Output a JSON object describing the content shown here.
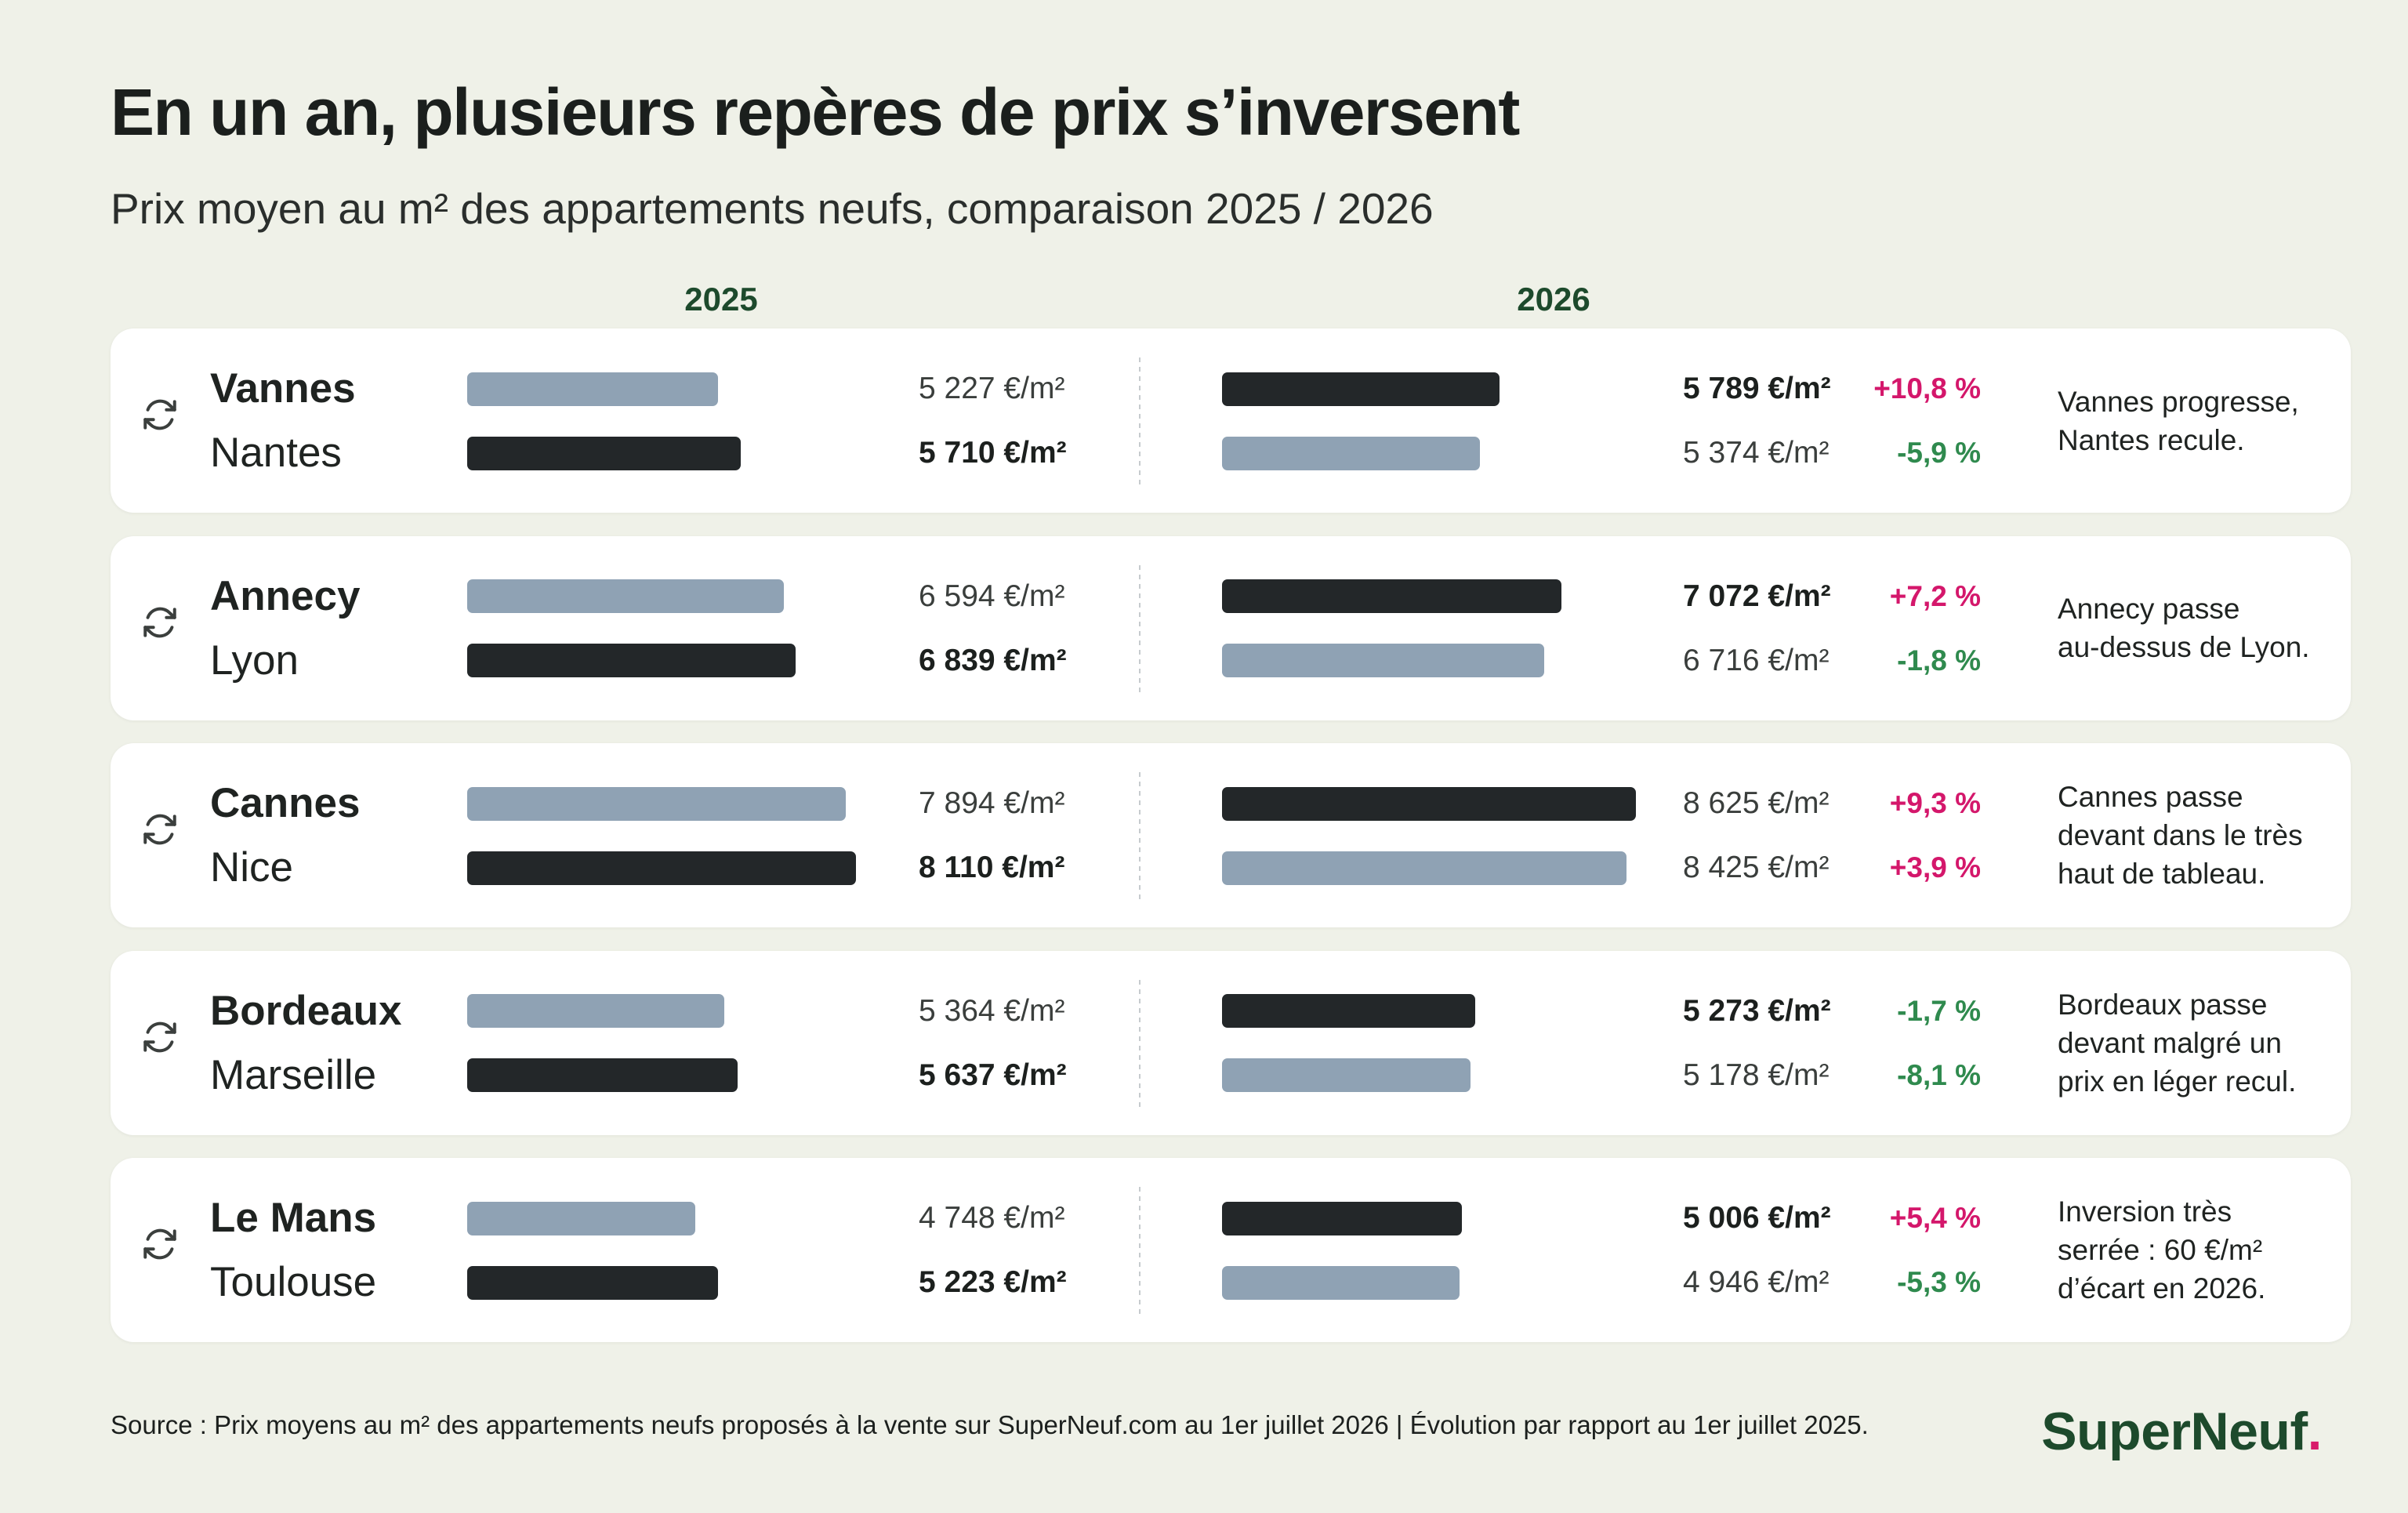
{
  "chart_data": {
    "type": "bar",
    "title": "En un an, plusieurs repères de prix s’inversent",
    "subtitle": "Prix moyen au m² des appartements neufs, comparaison 2025 / 2026",
    "periods": [
      "2025",
      "2026"
    ],
    "groups": [
      {
        "cities": [
          {
            "name": "Vannes",
            "values": [
              5227,
              5789
            ],
            "labels": [
              "5 227 €/m²",
              "5 789 €/m²"
            ],
            "change": "+10,8 %",
            "dark": [
              false,
              true
            ],
            "bold": [
              false,
              true
            ]
          },
          {
            "name": "Nantes",
            "values": [
              5710,
              5374
            ],
            "labels": [
              "5 710 €/m²",
              "5 374 €/m²"
            ],
            "change": "-5,9 %",
            "dark": [
              true,
              false
            ],
            "bold": [
              true,
              false
            ]
          }
        ],
        "note": "Vannes progresse,\nNantes recule."
      },
      {
        "cities": [
          {
            "name": "Annecy",
            "values": [
              6594,
              7072
            ],
            "labels": [
              "6 594 €/m²",
              "7 072 €/m²"
            ],
            "change": "+7,2 %",
            "dark": [
              false,
              true
            ],
            "bold": [
              false,
              true
            ]
          },
          {
            "name": "Lyon",
            "values": [
              6839,
              6716
            ],
            "labels": [
              "6 839 €/m²",
              "6 716 €/m²"
            ],
            "change": "-1,8 %",
            "dark": [
              true,
              false
            ],
            "bold": [
              true,
              false
            ]
          }
        ],
        "note": "Annecy passe\nau-dessus de Lyon."
      },
      {
        "cities": [
          {
            "name": "Cannes",
            "values": [
              7894,
              8625
            ],
            "labels": [
              "7 894 €/m²",
              "8 625 €/m²"
            ],
            "change": "+9,3 %",
            "dark": [
              false,
              true
            ],
            "bold": [
              false,
              false
            ]
          },
          {
            "name": "Nice",
            "values": [
              8110,
              8425
            ],
            "labels": [
              "8 110 €/m²",
              "8 425 €/m²"
            ],
            "change": "+3,9 %",
            "dark": [
              true,
              false
            ],
            "bold": [
              true,
              false
            ]
          }
        ],
        "note": "Cannes passe\ndevant dans le très\nhaut de tableau."
      },
      {
        "cities": [
          {
            "name": "Bordeaux",
            "values": [
              5364,
              5273
            ],
            "labels": [
              "5 364 €/m²",
              "5 273 €/m²"
            ],
            "change": "-1,7 %",
            "dark": [
              false,
              true
            ],
            "bold": [
              false,
              true
            ]
          },
          {
            "name": "Marseille",
            "values": [
              5637,
              5178
            ],
            "labels": [
              "5 637 €/m²",
              "5 178 €/m²"
            ],
            "change": "-8,1 %",
            "dark": [
              true,
              false
            ],
            "bold": [
              true,
              false
            ]
          }
        ],
        "note": "Bordeaux passe\ndevant malgré un\nprix en léger recul."
      },
      {
        "cities": [
          {
            "name": "Le Mans",
            "values": [
              4748,
              5006
            ],
            "labels": [
              "4 748 €/m²",
              "5 006 €/m²"
            ],
            "change": "+5,4 %",
            "dark": [
              false,
              true
            ],
            "bold": [
              false,
              true
            ]
          },
          {
            "name": "Toulouse",
            "values": [
              5223,
              4946
            ],
            "labels": [
              "5 223 €/m²",
              "4 946 €/m²"
            ],
            "change": "-5,3 %",
            "dark": [
              true,
              false
            ],
            "bold": [
              true,
              false
            ]
          }
        ],
        "note": "Inversion très\nserrée : 60 €/m²\nd’écart en 2026."
      }
    ],
    "colors": {
      "dark_bar": "#232729",
      "light_bar": "#8fa2b4",
      "increase": "#d4176b",
      "decrease": "#2f8a4e",
      "period_header": "#1d4a2c"
    }
  },
  "icons": {
    "pair_marker": "refresh-icon"
  },
  "source": "Source : Prix moyens au m² des appartements neufs proposés à la vente sur SuperNeuf.com au 1er juillet 2026 | Évolution par rapport au 1er juillet 2025.",
  "logo": {
    "name": "SuperNeuf",
    "dot": ".",
    "color": "#1d4a2c",
    "accent": "#d81b6a"
  }
}
